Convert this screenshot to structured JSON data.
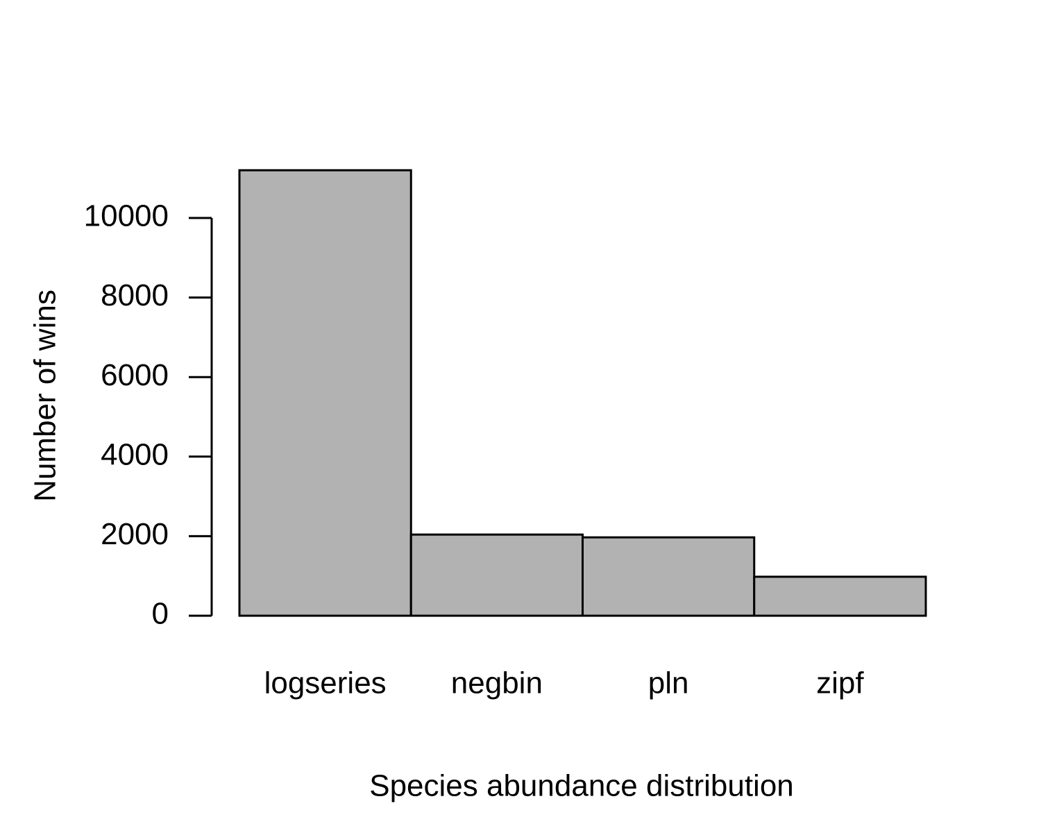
{
  "chart_data": {
    "type": "bar",
    "x_label": "Species abundance distribution",
    "y_label": "Number of wins",
    "categories": [
      "logseries",
      "negbin",
      "pln",
      "zipf"
    ],
    "values": [
      11200,
      2040,
      1970,
      980
    ],
    "color": "#b2b2b2",
    "ylim": [
      0,
      12000
    ],
    "yticks": [
      0,
      2000,
      4000,
      6000,
      8000,
      10000
    ]
  }
}
